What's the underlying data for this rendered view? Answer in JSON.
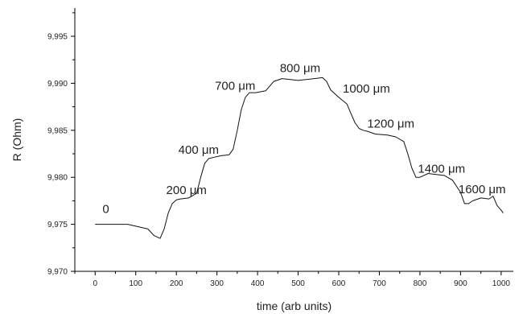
{
  "chart_data": {
    "type": "line",
    "title": "",
    "xlabel": "time (arb units)",
    "ylabel": "R (Ohm)",
    "xlim": [
      -50,
      1030
    ],
    "ylim": [
      9.97,
      9.998
    ],
    "x_ticks": [
      0,
      100,
      200,
      300,
      400,
      500,
      600,
      700,
      800,
      900,
      1000
    ],
    "x_tick_labels": [
      "0",
      "100",
      "200",
      "300",
      "400",
      "500",
      "600",
      "700",
      "800",
      "900",
      "1000"
    ],
    "y_ticks": [
      9.97,
      9.975,
      9.98,
      9.985,
      9.99,
      9.995
    ],
    "y_tick_labels": [
      "9,970",
      "9,975",
      "9,980",
      "9,985",
      "9,990",
      "9,995"
    ],
    "grid": false,
    "series": [
      {
        "x": [
          0,
          40,
          80,
          100,
          130,
          145,
          160,
          170,
          180,
          190,
          200,
          210,
          230,
          250,
          260,
          270,
          280,
          290,
          310,
          330,
          340,
          350,
          360,
          370,
          380,
          395,
          420,
          440,
          460,
          480,
          500,
          520,
          540,
          560,
          570,
          580,
          600,
          620,
          630,
          640,
          650,
          660,
          670,
          690,
          720,
          740,
          760,
          770,
          780,
          790,
          800,
          820,
          840,
          860,
          880,
          900,
          910,
          920,
          930,
          950,
          970,
          980,
          990,
          1000,
          1005
        ],
        "y": [
          9.975,
          9.975,
          9.975,
          9.9748,
          9.9745,
          9.9738,
          9.9735,
          9.9745,
          9.9762,
          9.9772,
          9.9776,
          9.9777,
          9.9778,
          9.9783,
          9.98,
          9.9815,
          9.982,
          9.9821,
          9.9823,
          9.9824,
          9.983,
          9.985,
          9.9872,
          9.9885,
          9.989,
          9.989,
          9.9892,
          9.9902,
          9.9905,
          9.9904,
          9.9903,
          9.9904,
          9.9905,
          9.9906,
          9.9902,
          9.9893,
          9.9885,
          9.9878,
          9.9868,
          9.9858,
          9.9852,
          9.985,
          9.9849,
          9.9846,
          9.9845,
          9.9843,
          9.9838,
          9.9825,
          9.981,
          9.98,
          9.98,
          9.9804,
          9.9803,
          9.9802,
          9.9797,
          9.9784,
          9.9772,
          9.9772,
          9.9775,
          9.9778,
          9.9777,
          9.978,
          9.977,
          9.9765,
          9.9762
        ]
      }
    ],
    "annotations": [
      {
        "text": "0",
        "x": 18,
        "y": 9.9762
      },
      {
        "text": "200 μm",
        "x": 175,
        "y": 9.9782
      },
      {
        "text": "400 μm",
        "x": 205,
        "y": 9.9825
      },
      {
        "text": "700 μm",
        "x": 295,
        "y": 9.9893
      },
      {
        "text": "800 μm",
        "x": 455,
        "y": 9.9912
      },
      {
        "text": "1000 μm",
        "x": 610,
        "y": 9.989
      },
      {
        "text": "1200 μm",
        "x": 670,
        "y": 9.9853
      },
      {
        "text": "1400 μm",
        "x": 795,
        "y": 9.9805
      },
      {
        "text": "1600 μm",
        "x": 895,
        "y": 9.9783
      }
    ]
  }
}
